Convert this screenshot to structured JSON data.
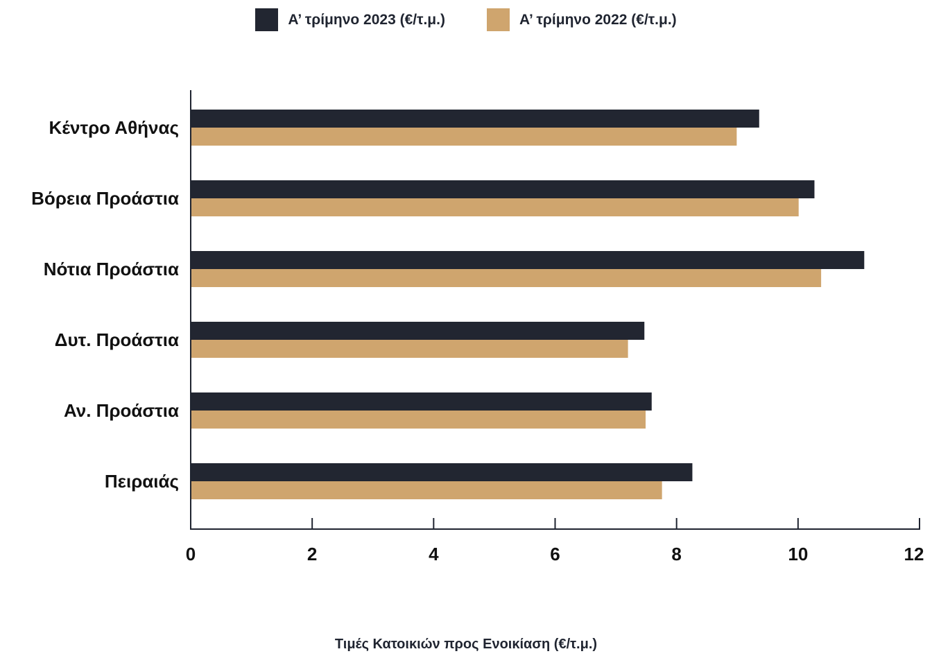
{
  "chart_data": {
    "type": "bar",
    "orientation": "horizontal",
    "categories": [
      "Κέντρο Αθήνας",
      "Βόρεια Προάστια",
      "Νότια Προάστια",
      "Δυτ. Προάστια",
      "Αν. Προάστια",
      "Πειραιάς"
    ],
    "series": [
      {
        "name": "Α’ τρίμηνο 2023 (€/τ.μ.)",
        "color": "#222631",
        "values": [
          9.36,
          10.27,
          11.09,
          7.47,
          7.59,
          8.26
        ]
      },
      {
        "name": "Α’ τρίμηνο 2022 (€/τ.μ.)",
        "color": "#cfa56e",
        "values": [
          8.99,
          10.01,
          10.38,
          7.2,
          7.49,
          7.76
        ]
      }
    ],
    "xlabel": "Τιμές Κατοικιών προς Ενοικίαση (€/τ.μ.)",
    "ylabel": "",
    "title": "",
    "xlim": [
      0,
      12
    ],
    "xticks": [
      "0",
      "2",
      "4",
      "6",
      "8",
      "10",
      "12"
    ],
    "legend_position": "top-center",
    "grid": false
  }
}
